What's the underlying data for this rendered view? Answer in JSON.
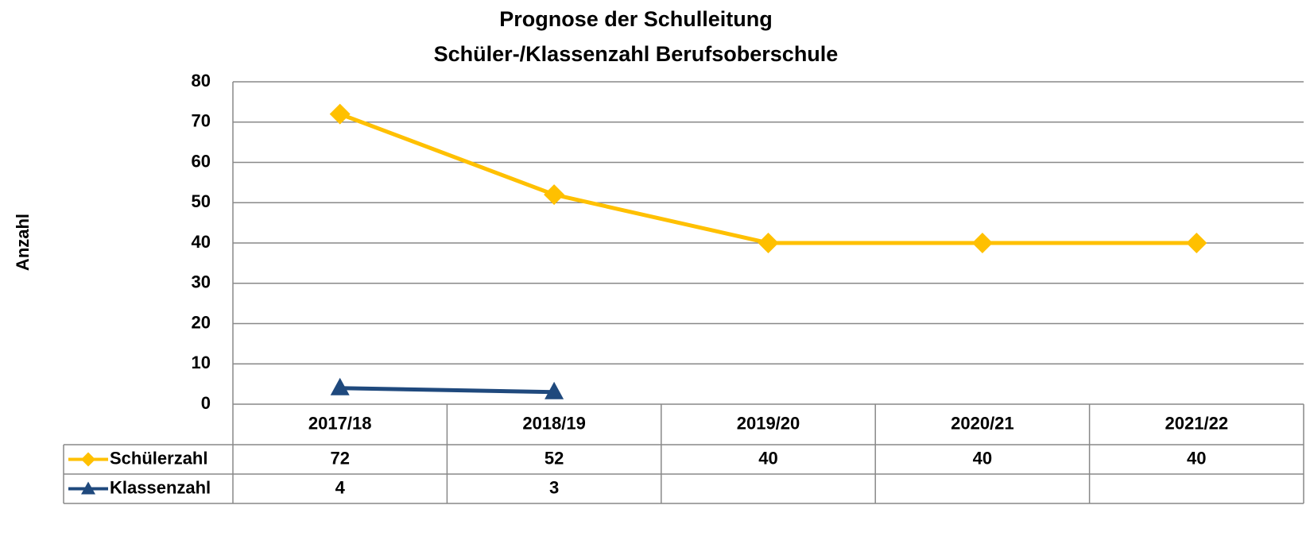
{
  "chart_data": {
    "type": "line",
    "title": [
      "Prognose der Schulleitung",
      "Schüler-/Klassenzahl Berufsoberschule"
    ],
    "y_label": "Anzahl",
    "categories": [
      "2017/18",
      "2018/19",
      "2019/20",
      "2020/21",
      "2021/22"
    ],
    "series": [
      {
        "name": "Schülerzahl",
        "color": "#FFC000",
        "marker": "diamond",
        "values": [
          72,
          52,
          40,
          40,
          40
        ]
      },
      {
        "name": "Klassenzahl",
        "color": "#1F497D",
        "marker": "triangle",
        "values": [
          4,
          3,
          null,
          null,
          null
        ]
      }
    ],
    "ylim": [
      0,
      80
    ],
    "yticks": [
      0,
      10,
      20,
      30,
      40,
      50,
      60,
      70,
      80
    ],
    "grid": true,
    "data_table": true
  }
}
